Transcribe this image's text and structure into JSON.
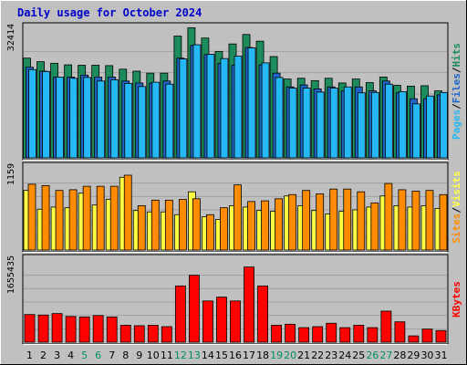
{
  "chart_data": {
    "type": "bar",
    "title": "Daily usage for October 2024",
    "categories": [
      "1",
      "2",
      "3",
      "4",
      "5",
      "6",
      "7",
      "8",
      "9",
      "10",
      "11",
      "12",
      "13",
      "14",
      "15",
      "16",
      "17",
      "18",
      "19",
      "20",
      "21",
      "22",
      "23",
      "24",
      "25",
      "26",
      "27",
      "28",
      "29",
      "30",
      "31"
    ],
    "weekend_days": [
      "5",
      "6",
      "12",
      "13",
      "19",
      "20",
      "26",
      "27"
    ],
    "colors": {
      "hits": "#1c8c5c",
      "files": "#1e66c8",
      "pages": "#25b8f4",
      "visits": "#ffff44",
      "sites": "#ff8c00",
      "kbytes": "#ff0000",
      "weekday_label": "#000000",
      "weekend_label": "#009060",
      "title": "#0000cc",
      "background": "#c0c0c0",
      "plot_background": "#c0c0c0"
    },
    "panels": [
      {
        "name": "hits-files-pages",
        "max_label": "32414",
        "ymax": 32414,
        "legend": [
          {
            "label": "Pages",
            "color": "#25b8f4"
          },
          {
            "label": "/",
            "color": "#000000"
          },
          {
            "label": "Files",
            "color": "#1e66c8"
          },
          {
            "label": "/",
            "color": "#000000"
          },
          {
            "label": "Hits",
            "color": "#1c8c5c"
          }
        ],
        "series": [
          {
            "name": "Hits",
            "color": "#1c8c5c",
            "values": [
              25300,
              24400,
              24000,
              23600,
              23500,
              23500,
              23400,
              22500,
              22000,
              21500,
              21500,
              30900,
              33000,
              30400,
              27000,
              28900,
              31300,
              29600,
              25700,
              20000,
              20200,
              19600,
              20200,
              19000,
              20000,
              19100,
              20500,
              18400,
              18200,
              18300,
              17000
            ]
          },
          {
            "name": "Files",
            "color": "#1e66c8",
            "values": [
              23000,
              22000,
              20500,
              20500,
              21000,
              20500,
              20500,
              19500,
              19000,
              19000,
              19500,
              25300,
              28500,
              26200,
              24000,
              23500,
              28000,
              23600,
              21500,
              18000,
              18500,
              17500,
              18000,
              17000,
              18000,
              17000,
              19500,
              16500,
              15000,
              15000,
              16000
            ]
          },
          {
            "name": "Pages",
            "color": "#25b8f4",
            "values": [
              22400,
              21900,
              20500,
              20200,
              20400,
              19500,
              19800,
              18900,
              18100,
              19200,
              18700,
              25100,
              28700,
              26300,
              25200,
              25800,
              27900,
              24100,
              20400,
              17700,
              17700,
              16700,
              17700,
              18000,
              16500,
              16600,
              18700,
              16800,
              13700,
              15700,
              16600
            ]
          }
        ]
      },
      {
        "name": "visits-sites",
        "max_label": "1159",
        "ymax": 1159,
        "legend": [
          {
            "label": "Sites",
            "color": "#ff8c00"
          },
          {
            "label": "/",
            "color": "#000000"
          },
          {
            "label": "Visits",
            "color": "#ffff44"
          }
        ],
        "series": [
          {
            "name": "Visits",
            "color": "#ffff44",
            "values": [
              860,
              590,
              620,
              610,
              820,
              650,
              730,
              1050,
              570,
              550,
              550,
              510,
              840,
              480,
              440,
              640,
              620,
              570,
              560,
              780,
              640,
              570,
              520,
              560,
              580,
              620,
              780,
              640,
              620,
              640,
              600
            ]
          },
          {
            "name": "Sites",
            "color": "#ff8c00",
            "values": [
              950,
              930,
              860,
              870,
              920,
              920,
              920,
              1080,
              640,
              720,
              720,
              730,
              740,
              510,
              610,
              940,
              700,
              710,
              740,
              800,
              860,
              810,
              880,
              880,
              840,
              680,
              960,
              870,
              850,
              860,
              800
            ]
          }
        ]
      },
      {
        "name": "kbytes",
        "max_label": "1655435",
        "ymax": 1655435,
        "legend": [
          {
            "label": "KBytes",
            "color": "#ff0000"
          }
        ],
        "series": [
          {
            "name": "KBytes",
            "color": "#ff0000",
            "values": [
              570000,
              560000,
              590000,
              530000,
              520000,
              550000,
              520000,
              350000,
              340000,
              350000,
              320000,
              1160000,
              1380000,
              850000,
              930000,
              850000,
              1550000,
              1160000,
              350000,
              370000,
              300000,
              320000,
              390000,
              300000,
              350000,
              300000,
              640000,
              420000,
              130000,
              270000,
              240000
            ]
          }
        ]
      }
    ]
  }
}
